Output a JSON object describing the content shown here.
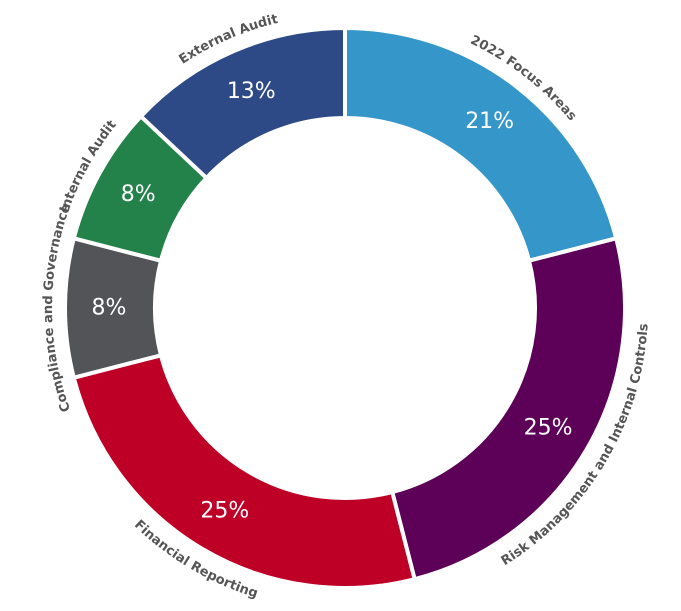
{
  "chart_data": {
    "type": "pie",
    "categories": [
      "2022 Focus Areas",
      "Risk Management and Internal Controls",
      "Financial Reporting",
      "Compliance and Governance",
      "Internal Audit",
      "External Audit"
    ],
    "values": [
      21,
      25,
      25,
      8,
      8,
      13
    ],
    "value_labels": [
      "21%",
      "25%",
      "25%",
      "8%",
      "8%",
      "13%"
    ],
    "colors": [
      "#3596c9",
      "#5c0058",
      "#be0027",
      "#525457",
      "#23824a",
      "#2d4a87"
    ]
  }
}
